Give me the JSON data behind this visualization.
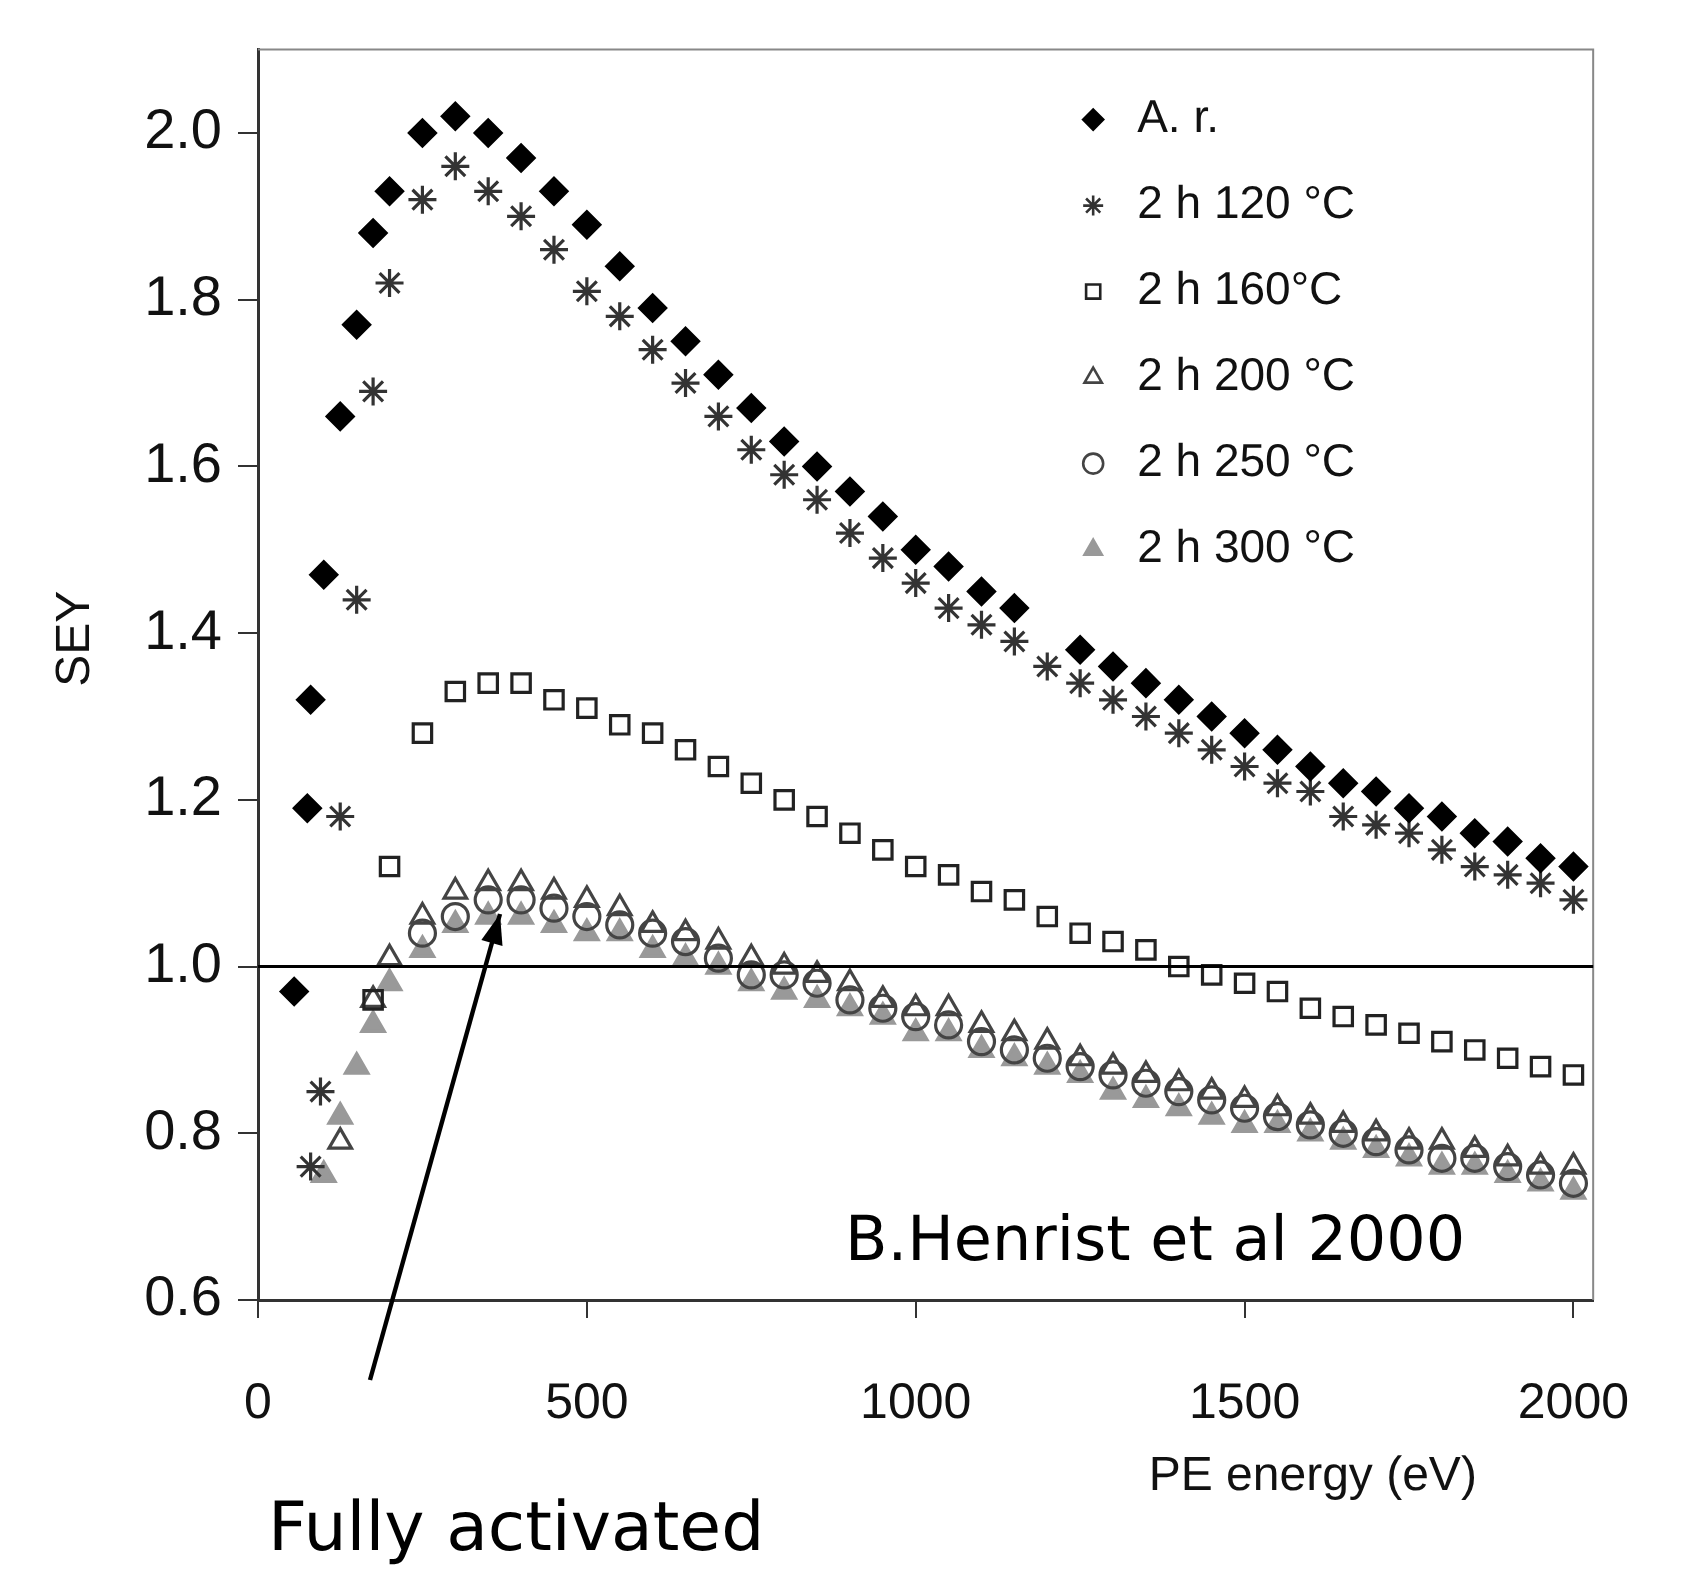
{
  "chart_data": {
    "type": "scatter",
    "xlabel": "PE energy (eV)",
    "ylabel": "SEY",
    "xlim": [
      0,
      2030
    ],
    "xticks": [
      0,
      500,
      1000,
      1500,
      2000
    ],
    "ylim": [
      0.6,
      2.1
    ],
    "yticks": [
      0.6,
      0.8,
      {
        "value": 1,
        "label": "1.0"
      },
      1.2,
      1.4,
      1.6,
      1.8,
      {
        "value": 2,
        "label": "2.0"
      }
    ],
    "grid": false,
    "legend": "top right",
    "ref_lines": [
      {
        "axis": "y",
        "value": 1,
        "color": "#000000"
      }
    ],
    "annotations": [
      "B.Henrist et al 2000",
      "Fully activated"
    ],
    "series": [
      {
        "name": "A. r.",
        "color": "#000000",
        "marker": "diamond",
        "x": [
          55,
          75,
          80,
          100,
          125,
          150,
          175,
          200,
          250,
          300,
          350,
          400,
          450,
          500,
          550,
          600,
          650,
          700,
          750,
          800,
          850,
          900,
          950,
          1000,
          1050,
          1100,
          1150,
          1200,
          1250,
          1300,
          1350,
          1400,
          1450,
          1500,
          1550,
          1600,
          1650,
          1700,
          1750,
          1800,
          1850,
          1900,
          1950,
          2000
        ],
        "values": [
          0.97,
          1.19,
          1.32,
          1.47,
          1.66,
          1.77,
          1.88,
          1.93,
          2.0,
          2.02,
          2.0,
          1.97,
          1.93,
          1.89,
          1.84,
          1.79,
          1.75,
          1.71,
          1.67,
          1.63,
          1.6,
          1.57,
          1.54,
          1.5,
          1.48,
          1.45,
          1.43,
          null,
          1.38,
          1.36,
          1.34,
          1.32,
          1.3,
          1.28,
          1.26,
          1.24,
          1.22,
          1.21,
          1.19,
          1.18,
          1.16,
          1.15,
          1.13,
          1.12
        ]
      },
      {
        "name": "2 h 120 °C",
        "color": "#333333",
        "marker": "cross",
        "x": [
          80,
          95,
          125,
          150,
          175,
          200,
          250,
          300,
          350,
          400,
          450,
          500,
          550,
          600,
          650,
          700,
          750,
          800,
          850,
          900,
          950,
          1000,
          1050,
          1100,
          1150,
          1200,
          1250,
          1300,
          1350,
          1400,
          1450,
          1500,
          1550,
          1600,
          1650,
          1700,
          1750,
          1800,
          1850,
          1900,
          1950,
          2000
        ],
        "values": [
          0.76,
          0.85,
          1.18,
          1.44,
          1.69,
          1.82,
          1.92,
          1.96,
          1.93,
          1.9,
          1.86,
          1.81,
          1.78,
          1.74,
          1.7,
          1.66,
          1.62,
          1.59,
          1.56,
          1.52,
          1.49,
          1.46,
          1.43,
          1.41,
          1.39,
          1.36,
          1.34,
          1.32,
          1.3,
          1.28,
          1.26,
          1.24,
          1.22,
          1.21,
          1.18,
          1.17,
          1.16,
          1.14,
          1.12,
          1.11,
          1.1,
          1.08
        ]
      },
      {
        "name": "2 h 160°C",
        "color": "#222222",
        "marker": "square",
        "x": [
          175,
          200,
          250,
          300,
          350,
          400,
          450,
          500,
          550,
          600,
          650,
          700,
          750,
          800,
          850,
          900,
          950,
          1000,
          1050,
          1100,
          1150,
          1200,
          1250,
          1300,
          1350,
          1400,
          1450,
          1500,
          1550,
          1600,
          1650,
          1700,
          1750,
          1800,
          1850,
          1900,
          1950,
          2000
        ],
        "values": [
          0.96,
          1.12,
          1.28,
          1.33,
          1.34,
          1.34,
          1.32,
          1.31,
          1.29,
          1.28,
          1.26,
          1.24,
          1.22,
          1.2,
          1.18,
          1.16,
          1.14,
          1.12,
          1.11,
          1.09,
          1.08,
          1.06,
          1.04,
          1.03,
          1.02,
          1.0,
          0.99,
          0.98,
          0.97,
          0.95,
          0.94,
          0.93,
          0.92,
          0.91,
          0.9,
          0.89,
          0.88,
          0.87
        ]
      },
      {
        "name": "2 h 200 °C",
        "color": "#444444",
        "marker": "triangle",
        "x": [
          125,
          175,
          200,
          250,
          300,
          350,
          400,
          450,
          500,
          550,
          600,
          650,
          700,
          750,
          800,
          850,
          900,
          950,
          1000,
          1050,
          1100,
          1150,
          1200,
          1250,
          1300,
          1350,
          1400,
          1450,
          1500,
          1550,
          1600,
          1650,
          1700,
          1750,
          1800,
          1850,
          1900,
          1950,
          2000
        ],
        "values": [
          0.79,
          0.96,
          1.01,
          1.06,
          1.09,
          1.1,
          1.1,
          1.09,
          1.08,
          1.07,
          1.05,
          1.04,
          1.03,
          1.01,
          1.0,
          0.99,
          0.98,
          0.96,
          0.95,
          0.95,
          0.93,
          0.92,
          0.91,
          0.89,
          0.88,
          0.87,
          0.86,
          0.85,
          0.84,
          0.83,
          0.82,
          0.81,
          0.8,
          0.79,
          0.79,
          0.78,
          0.77,
          0.76,
          0.76
        ]
      },
      {
        "name": "2 h 250 °C",
        "color": "#444444",
        "marker": "circle",
        "x": [
          250,
          300,
          350,
          400,
          450,
          500,
          550,
          600,
          650,
          700,
          750,
          800,
          850,
          900,
          950,
          1000,
          1050,
          1100,
          1150,
          1200,
          1250,
          1300,
          1350,
          1400,
          1450,
          1500,
          1550,
          1600,
          1650,
          1700,
          1750,
          1800,
          1850,
          1900,
          1950,
          2000
        ],
        "values": [
          1.04,
          1.06,
          1.08,
          1.08,
          1.07,
          1.06,
          1.05,
          1.04,
          1.03,
          1.01,
          0.99,
          0.99,
          0.98,
          0.96,
          0.95,
          0.94,
          0.93,
          0.91,
          0.9,
          0.89,
          0.88,
          0.87,
          0.86,
          0.85,
          0.84,
          0.83,
          0.82,
          0.81,
          0.8,
          0.79,
          0.78,
          0.77,
          0.77,
          0.76,
          0.75,
          0.74
        ]
      },
      {
        "name": "2 h 300 °C",
        "color": "#999999",
        "marker": "triangle",
        "x": [
          100,
          125,
          150,
          175,
          200,
          250,
          300,
          350,
          400,
          450,
          500,
          550,
          600,
          650,
          700,
          750,
          800,
          850,
          900,
          950,
          1000,
          1050,
          1100,
          1150,
          1200,
          1250,
          1300,
          1350,
          1400,
          1450,
          1500,
          1550,
          1600,
          1650,
          1700,
          1750,
          1800,
          1850,
          1900,
          1950,
          2000
        ],
        "values": [
          0.75,
          0.82,
          0.88,
          0.93,
          0.98,
          1.02,
          1.05,
          1.06,
          1.06,
          1.05,
          1.04,
          1.04,
          1.02,
          1.01,
          1.0,
          0.98,
          0.97,
          0.96,
          0.95,
          0.94,
          0.92,
          0.92,
          0.9,
          0.89,
          0.88,
          0.87,
          0.85,
          0.84,
          0.83,
          0.82,
          0.81,
          0.81,
          0.8,
          0.79,
          0.78,
          0.77,
          0.76,
          0.76,
          0.75,
          0.74,
          0.73
        ]
      }
    ]
  }
}
